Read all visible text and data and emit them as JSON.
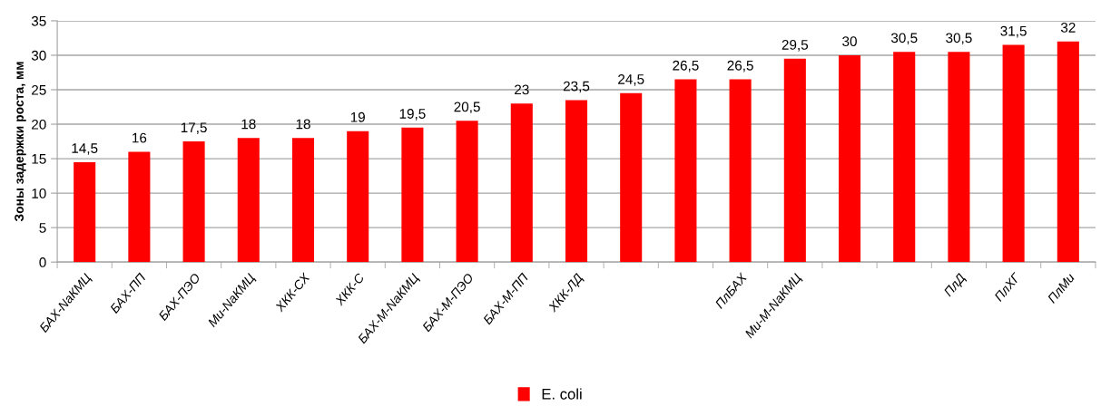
{
  "chart_data": {
    "type": "bar",
    "ylabel": "Зоны задержки роста, мм",
    "categories": [
      "БАХ-NaКМЦ",
      "БАХ-ПП",
      "БАХ-ПЭО",
      "Ми-NaКМЦ",
      "ХКК-СХ",
      "ХКК-С",
      "БАХ-М-NaКМЦ",
      "БАХ-М-ПЭО",
      "БАХ-М-ПП",
      "ХКК-ЛД",
      null,
      null,
      "ПлБАХ",
      "Ми-М-NaКМЦ",
      null,
      null,
      "ПлД",
      "ПлХГ",
      "ПлМи"
    ],
    "series": [
      {
        "name": "E. coli",
        "color": "#ff0000",
        "values": [
          14.5,
          16,
          17.5,
          18,
          18,
          19,
          19.5,
          20.5,
          23,
          23.5,
          24.5,
          26.5,
          26.5,
          29.5,
          30,
          30.5,
          30.5,
          31.5,
          32
        ],
        "value_labels": [
          "14,5",
          "16",
          "17,5",
          "18",
          "18",
          "19",
          "19,5",
          "20,5",
          "23",
          "23,5",
          "24,5",
          "26,5",
          "26,5",
          "29,5",
          "30",
          "30,5",
          "30,5",
          "31,5",
          "32"
        ]
      }
    ],
    "ylim": [
      0,
      35
    ],
    "yticks": [
      0,
      5,
      10,
      15,
      20,
      25,
      30,
      35
    ],
    "grid": "y",
    "legend": "bottom"
  }
}
